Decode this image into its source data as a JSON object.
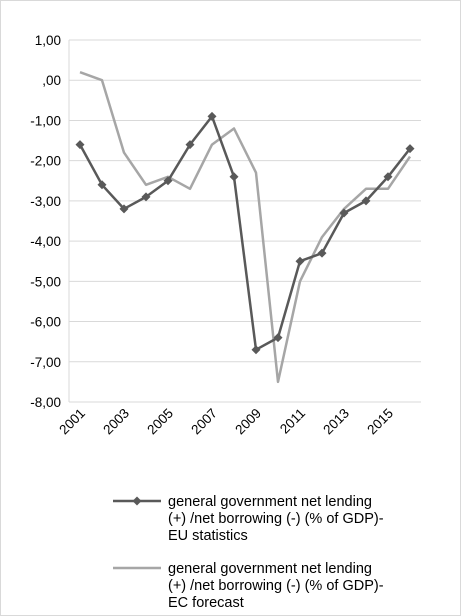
{
  "chart_data": {
    "type": "line",
    "title": "",
    "xlabel": "",
    "ylabel": "",
    "x": [
      2001,
      2002,
      2003,
      2004,
      2005,
      2006,
      2007,
      2008,
      2009,
      2010,
      2011,
      2012,
      2013,
      2014,
      2015,
      2016
    ],
    "x_tick_labels": [
      "2001",
      "2003",
      "2005",
      "2007",
      "2009",
      "2011",
      "2013",
      "2015"
    ],
    "y_tick_labels": [
      "1,00",
      ",00",
      "-1,00",
      "-2,00",
      "-3,00",
      "-4,00",
      "-5,00",
      "-6,00",
      "-7,00",
      "-8,00"
    ],
    "ylim": [
      -8,
      1
    ],
    "grid": "horizontal",
    "legend_position": "bottom",
    "series": [
      {
        "name_lines": [
          "general government net lending",
          "(+) /net borrowing (-) (% of GDP)-",
          "EU statistics"
        ],
        "color": "#595959",
        "marker": "diamond",
        "values": [
          -1.6,
          -2.6,
          -3.2,
          -2.9,
          -2.5,
          -1.6,
          -0.9,
          -2.4,
          -6.7,
          -6.4,
          -4.5,
          -4.3,
          -3.3,
          -3.0,
          -2.4,
          -1.7
        ]
      },
      {
        "name_lines": [
          "general government net lending",
          "(+) /net borrowing (-) (% of GDP)-",
          "EC forecast"
        ],
        "color": "#a6a6a6",
        "marker": "none",
        "values": [
          0.2,
          0.0,
          -1.8,
          -2.6,
          -2.4,
          -2.7,
          -1.6,
          -1.2,
          -2.3,
          -7.5,
          -5.0,
          -3.9,
          -3.2,
          -2.7,
          -2.7,
          -1.9
        ]
      }
    ]
  }
}
